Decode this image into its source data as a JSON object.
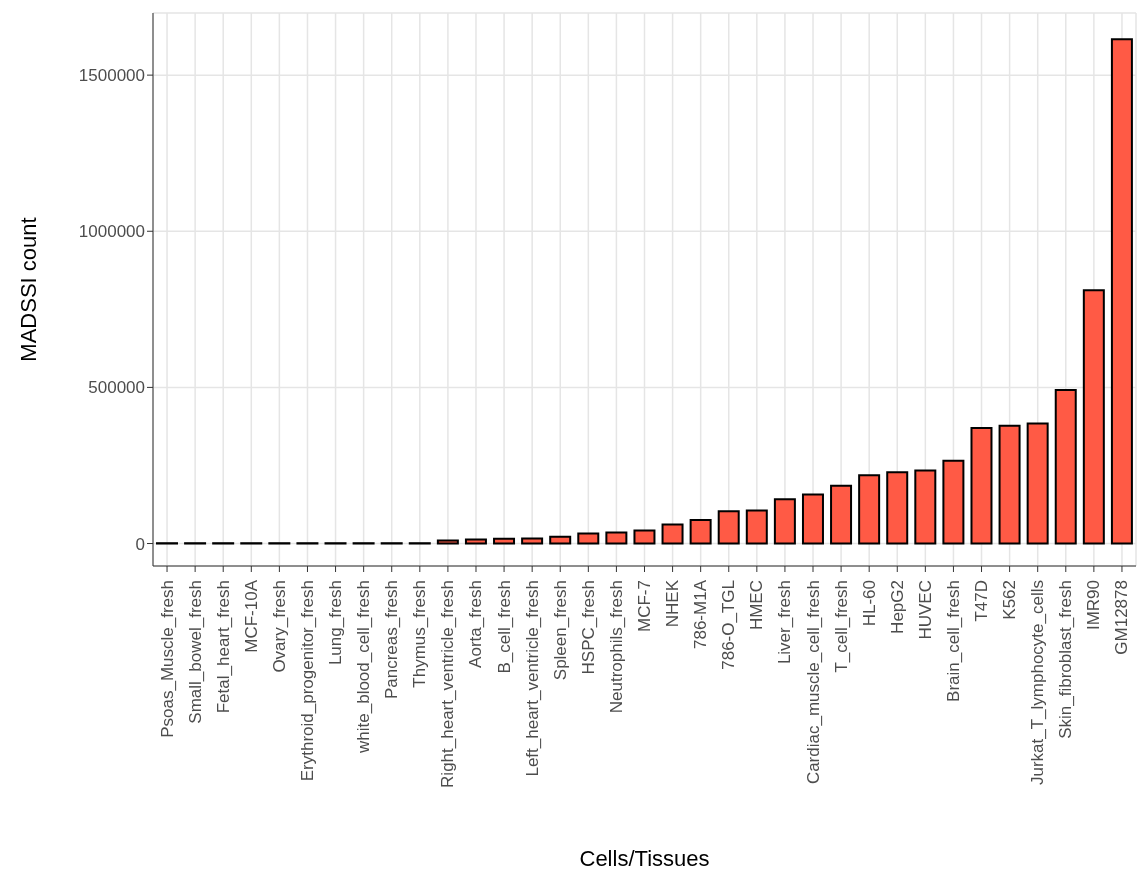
{
  "chart_data": {
    "type": "bar",
    "xlabel": "Cells/Tissues",
    "ylabel": "MADSSI count",
    "categories": [
      "Psoas_Muscle_fresh",
      "Small_bowel_fresh",
      "Fetal_heart_fresh",
      "MCF-10A",
      "Ovary_fresh",
      "Erythroid_progenitor_fresh",
      "Lung_fresh",
      "white_blood_cell_fresh",
      "Pancreas_fresh",
      "Thymus_fresh",
      "Right_heart_ventricle_fresh",
      "Aorta_fresh",
      "B_cell_fresh",
      "Left_heart_ventricle_fresh",
      "Spleen_fresh",
      "HSPC_fresh",
      "Neutrophils_fresh",
      "MCF-7",
      "NHEK",
      "786-M1A",
      "786-O_TGL",
      "HMEC",
      "Liver_fresh",
      "Cardiac_muscle_cell_fresh",
      "T_cell_fresh",
      "HL-60",
      "HepG2",
      "HUVEC",
      "Brain_cell_fresh",
      "T47D",
      "K562",
      "Jurkat_T_lymphocyte_cells",
      "Skin_fibroblast_fresh",
      "IMR90",
      "GM12878"
    ],
    "values": [
      1000,
      1000,
      1000,
      1000,
      1000,
      1000,
      1000,
      1000,
      1000,
      1000,
      10000,
      13000,
      15000,
      16000,
      22000,
      32000,
      35000,
      42000,
      61000,
      75000,
      103000,
      106000,
      142000,
      157000,
      185000,
      219000,
      228000,
      234000,
      265000,
      370000,
      377000,
      384000,
      492000,
      811000,
      1615000
    ],
    "color": "#ff5a45",
    "ylim": [
      -72000,
      1699000
    ],
    "yticks": [
      0,
      500000,
      1000000,
      1500000
    ],
    "grid": true
  }
}
